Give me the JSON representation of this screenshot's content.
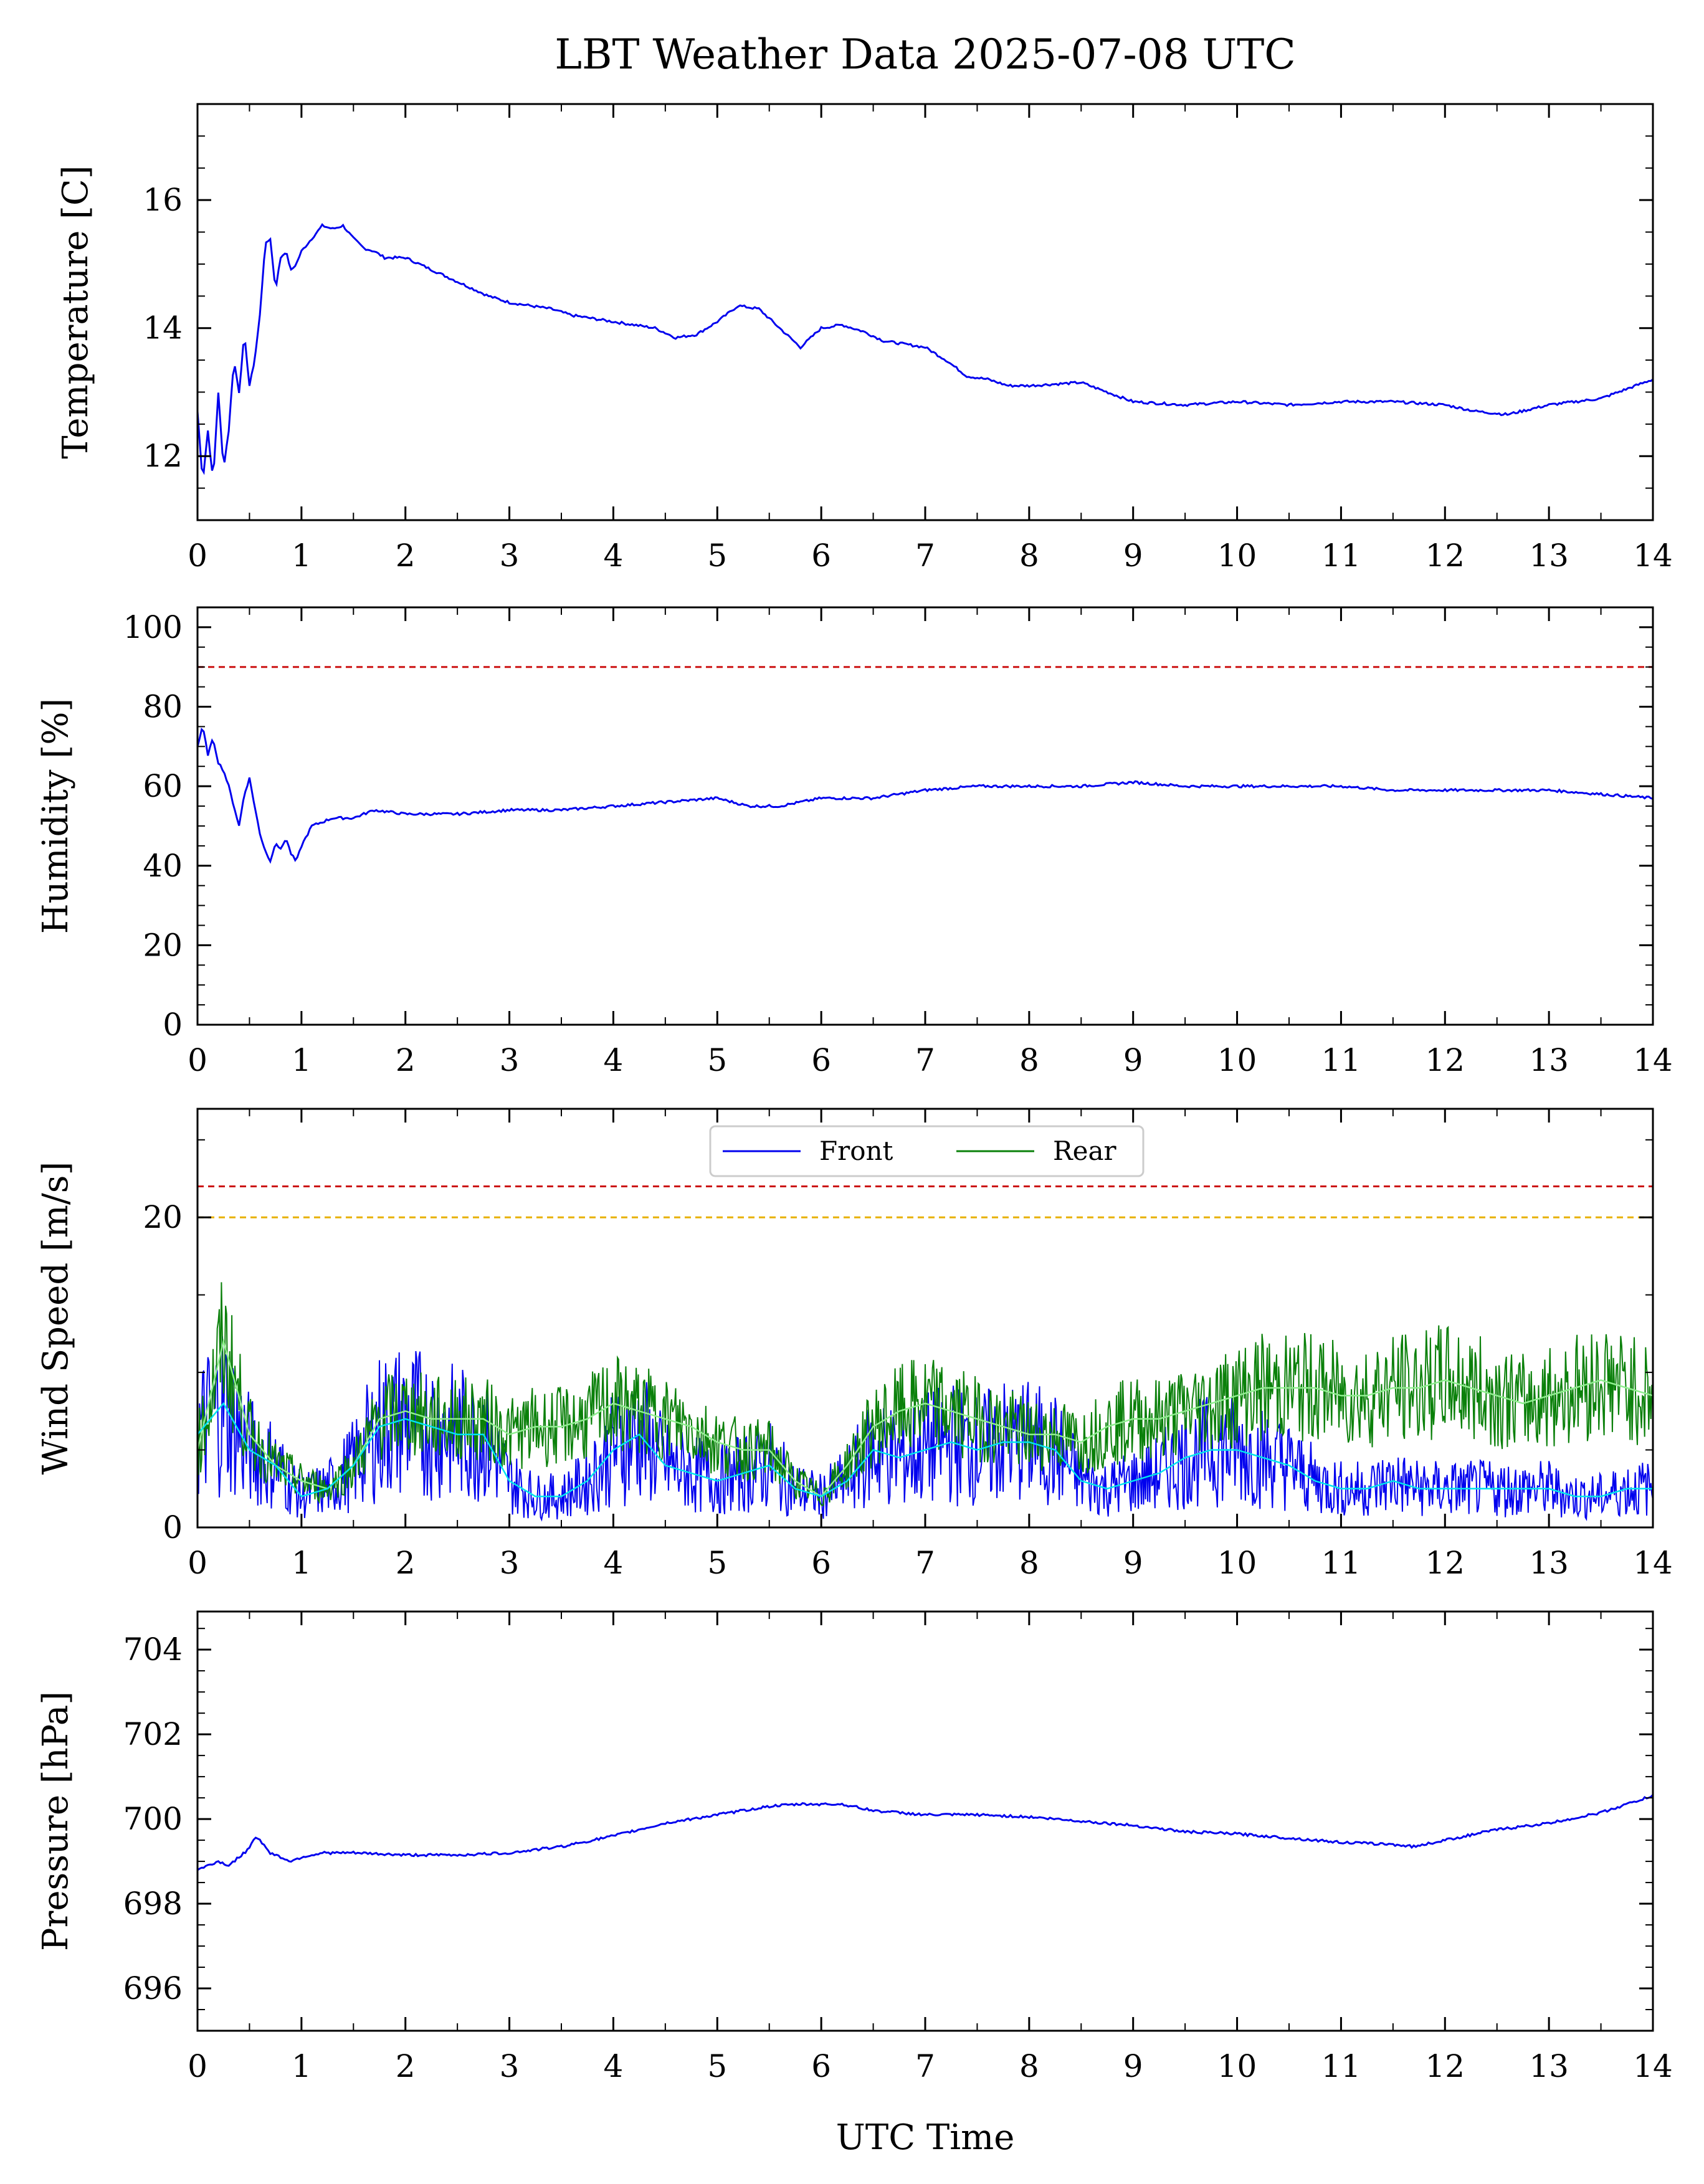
{
  "title": "LBT Weather Data 2025-07-08 UTC",
  "xlabel": "UTC Time",
  "colors": {
    "primary": "#0000ee",
    "rear": "#0a800a",
    "smooth_front": "#00e5ee",
    "smooth_rear": "#90ee90",
    "limit_red": "#cc1111",
    "limit_orange": "#e8b000"
  },
  "chart_data": [
    {
      "type": "line",
      "ylabel": "Temperature [C]",
      "xlim": [
        0,
        14
      ],
      "ylim": [
        11,
        17.5
      ],
      "x_ticks": [
        "0",
        "1",
        "2",
        "3",
        "4",
        "5",
        "6",
        "7",
        "8",
        "9",
        "10",
        "11",
        "12",
        "13",
        "14"
      ],
      "y_ticks": [
        "12",
        "14",
        "16"
      ],
      "series": [
        {
          "color": "#0000ee",
          "x": [
            0,
            0.05,
            0.1,
            0.15,
            0.2,
            0.25,
            0.3,
            0.35,
            0.4,
            0.45,
            0.5,
            0.55,
            0.6,
            0.65,
            0.7,
            0.75,
            0.8,
            0.85,
            0.9,
            0.95,
            1.0,
            1.1,
            1.2,
            1.3,
            1.4,
            1.5,
            1.6,
            1.7,
            1.8,
            2.0,
            2.2,
            2.4,
            2.6,
            2.8,
            3.0,
            3.2,
            3.4,
            3.6,
            3.8,
            4.0,
            4.2,
            4.4,
            4.6,
            4.8,
            5.0,
            5.2,
            5.4,
            5.6,
            5.8,
            6.0,
            6.2,
            6.4,
            6.6,
            6.8,
            7.0,
            7.2,
            7.4,
            7.6,
            7.8,
            8.0,
            8.5,
            9.0,
            9.5,
            10.0,
            10.5,
            11.0,
            11.5,
            12.0,
            12.3,
            12.6,
            13.0,
            13.5,
            14.0
          ],
          "y": [
            12.7,
            11.6,
            12.4,
            11.6,
            13.0,
            11.8,
            12.4,
            13.5,
            13.0,
            13.9,
            13.1,
            13.5,
            14.2,
            15.3,
            15.4,
            14.6,
            15.1,
            15.2,
            14.9,
            15.0,
            15.2,
            15.4,
            15.6,
            15.55,
            15.6,
            15.4,
            15.25,
            15.2,
            15.1,
            15.1,
            14.95,
            14.8,
            14.65,
            14.5,
            14.4,
            14.35,
            14.3,
            14.2,
            14.15,
            14.1,
            14.05,
            14.0,
            13.85,
            13.9,
            14.1,
            14.35,
            14.3,
            14.0,
            13.7,
            14.0,
            14.05,
            13.95,
            13.8,
            13.75,
            13.7,
            13.5,
            13.25,
            13.2,
            13.1,
            13.1,
            13.15,
            12.85,
            12.8,
            12.85,
            12.8,
            12.85,
            12.85,
            12.8,
            12.7,
            12.65,
            12.8,
            12.9,
            13.2
          ]
        }
      ]
    },
    {
      "type": "line",
      "ylabel": "Humidity [%]",
      "xlim": [
        0,
        14
      ],
      "ylim": [
        0,
        105
      ],
      "x_ticks": [
        "0",
        "1",
        "2",
        "3",
        "4",
        "5",
        "6",
        "7",
        "8",
        "9",
        "10",
        "11",
        "12",
        "13",
        "14"
      ],
      "y_ticks": [
        "0",
        "20",
        "40",
        "60",
        "80",
        "100"
      ],
      "limit_lines": [
        {
          "y": 90,
          "color": "#cc1111"
        }
      ],
      "series": [
        {
          "color": "#0000ee",
          "x": [
            0,
            0.05,
            0.1,
            0.15,
            0.2,
            0.25,
            0.3,
            0.35,
            0.4,
            0.45,
            0.5,
            0.55,
            0.6,
            0.65,
            0.7,
            0.75,
            0.8,
            0.85,
            0.9,
            0.95,
            1.0,
            1.1,
            1.3,
            1.5,
            1.7,
            2.0,
            2.5,
            3.0,
            3.5,
            4.0,
            4.5,
            5.0,
            5.3,
            5.6,
            6.0,
            6.5,
            7.0,
            7.5,
            8.0,
            8.5,
            9.0,
            9.5,
            10.0,
            10.5,
            11.0,
            11.5,
            12.0,
            12.5,
            13.0,
            13.5,
            14.0
          ],
          "y": [
            70,
            75,
            68,
            72,
            66,
            64,
            60,
            55,
            50,
            58,
            62,
            55,
            48,
            44,
            41,
            46,
            44,
            47,
            43,
            41,
            45,
            50,
            52,
            52,
            54,
            53,
            53,
            54,
            54,
            55,
            56,
            57,
            55,
            55,
            57,
            57,
            59,
            60,
            60,
            60,
            61,
            60,
            60,
            60,
            60,
            59,
            59,
            59,
            59,
            58,
            57
          ]
        }
      ]
    },
    {
      "type": "line",
      "ylabel": "Wind Speed [m/s]",
      "xlim": [
        0,
        14
      ],
      "ylim": [
        0,
        27
      ],
      "x_ticks": [
        "0",
        "1",
        "2",
        "3",
        "4",
        "5",
        "6",
        "7",
        "8",
        "9",
        "10",
        "11",
        "12",
        "13",
        "14"
      ],
      "y_ticks": [
        "0",
        "20"
      ],
      "legend": {
        "location": "top-center",
        "entries": [
          {
            "label": "Front",
            "color": "#0000ee"
          },
          {
            "label": "Rear",
            "color": "#0a800a"
          }
        ]
      },
      "limit_lines": [
        {
          "y": 22,
          "color": "#cc1111"
        },
        {
          "y": 20,
          "color": "#e8b000"
        }
      ],
      "x": [
        0,
        0.25,
        0.5,
        0.75,
        1.0,
        1.25,
        1.5,
        1.75,
        2.0,
        2.25,
        2.5,
        2.75,
        3.0,
        3.25,
        3.5,
        3.75,
        4.0,
        4.25,
        4.5,
        4.75,
        5.0,
        5.25,
        5.5,
        5.75,
        6.0,
        6.25,
        6.5,
        6.75,
        7.0,
        7.25,
        7.5,
        7.75,
        8.0,
        8.25,
        8.5,
        8.75,
        9.0,
        9.25,
        9.5,
        9.75,
        10.0,
        10.25,
        10.5,
        10.75,
        11.0,
        11.25,
        11.5,
        11.75,
        12.0,
        12.25,
        12.5,
        12.75,
        13.0,
        13.25,
        13.5,
        13.75,
        14.0
      ],
      "series": [
        {
          "name": "Front",
          "color": "#0000ee",
          "values": [
            6,
            8,
            5,
            4,
            2,
            2.5,
            4,
            6.5,
            7,
            6.5,
            6,
            6,
            3,
            2,
            2,
            3,
            5,
            6,
            4,
            3.5,
            3,
            3.5,
            4,
            2.5,
            2,
            3,
            5,
            4.5,
            5,
            5.5,
            5,
            5.5,
            5.5,
            5,
            3,
            2.5,
            3,
            3.5,
            4.5,
            5,
            5,
            4.5,
            4,
            3,
            2.5,
            2.5,
            3,
            2.5,
            2.5,
            2.5,
            2.5,
            2.5,
            2.5,
            2,
            2,
            2.5,
            2.5
          ]
        },
        {
          "name": "Rear",
          "color": "#0a800a",
          "values": [
            5,
            12,
            6,
            4,
            3,
            2.5,
            4,
            7,
            7.5,
            7,
            7,
            7,
            6,
            6.5,
            6.5,
            7,
            8,
            7.5,
            7,
            6.5,
            5.5,
            5,
            5,
            3,
            2,
            4,
            6.5,
            7.5,
            8,
            7.5,
            7,
            6.5,
            6,
            6,
            5.5,
            6.5,
            7,
            7,
            7.5,
            8,
            8.5,
            9,
            9,
            9,
            8.5,
            8.5,
            9,
            9,
            9.5,
            9,
            8.5,
            8,
            8.5,
            9,
            9.5,
            9,
            8.5
          ]
        }
      ]
    },
    {
      "type": "line",
      "ylabel": "Pressure [hPa]",
      "xlim": [
        0,
        14
      ],
      "ylim": [
        695,
        704.9
      ],
      "x_ticks": [
        "0",
        "1",
        "2",
        "3",
        "4",
        "5",
        "6",
        "7",
        "8",
        "9",
        "10",
        "11",
        "12",
        "13",
        "14"
      ],
      "y_ticks": [
        "696",
        "698",
        "700",
        "702",
        "704"
      ],
      "series": [
        {
          "color": "#0000ee",
          "x": [
            0,
            0.1,
            0.2,
            0.3,
            0.4,
            0.5,
            0.55,
            0.6,
            0.7,
            0.8,
            0.9,
            1.0,
            1.2,
            1.5,
            2.0,
            2.5,
            3.0,
            3.5,
            4.0,
            4.5,
            5.0,
            5.5,
            5.8,
            6.2,
            6.5,
            7.0,
            7.5,
            8.0,
            8.5,
            9.0,
            9.5,
            10.0,
            10.5,
            11.0,
            11.5,
            11.7,
            12.0,
            12.5,
            13.0,
            13.5,
            14.0
          ],
          "y": [
            698.8,
            698.9,
            699.0,
            698.9,
            699.1,
            699.3,
            699.6,
            699.5,
            699.2,
            699.1,
            699.0,
            699.1,
            699.2,
            699.2,
            699.15,
            699.15,
            699.2,
            699.35,
            699.6,
            699.9,
            700.1,
            700.3,
            700.35,
            700.35,
            700.2,
            700.1,
            700.1,
            700.05,
            699.95,
            699.85,
            699.7,
            699.65,
            699.55,
            699.45,
            699.4,
            699.35,
            699.5,
            699.75,
            699.9,
            700.15,
            700.55
          ]
        }
      ]
    }
  ]
}
